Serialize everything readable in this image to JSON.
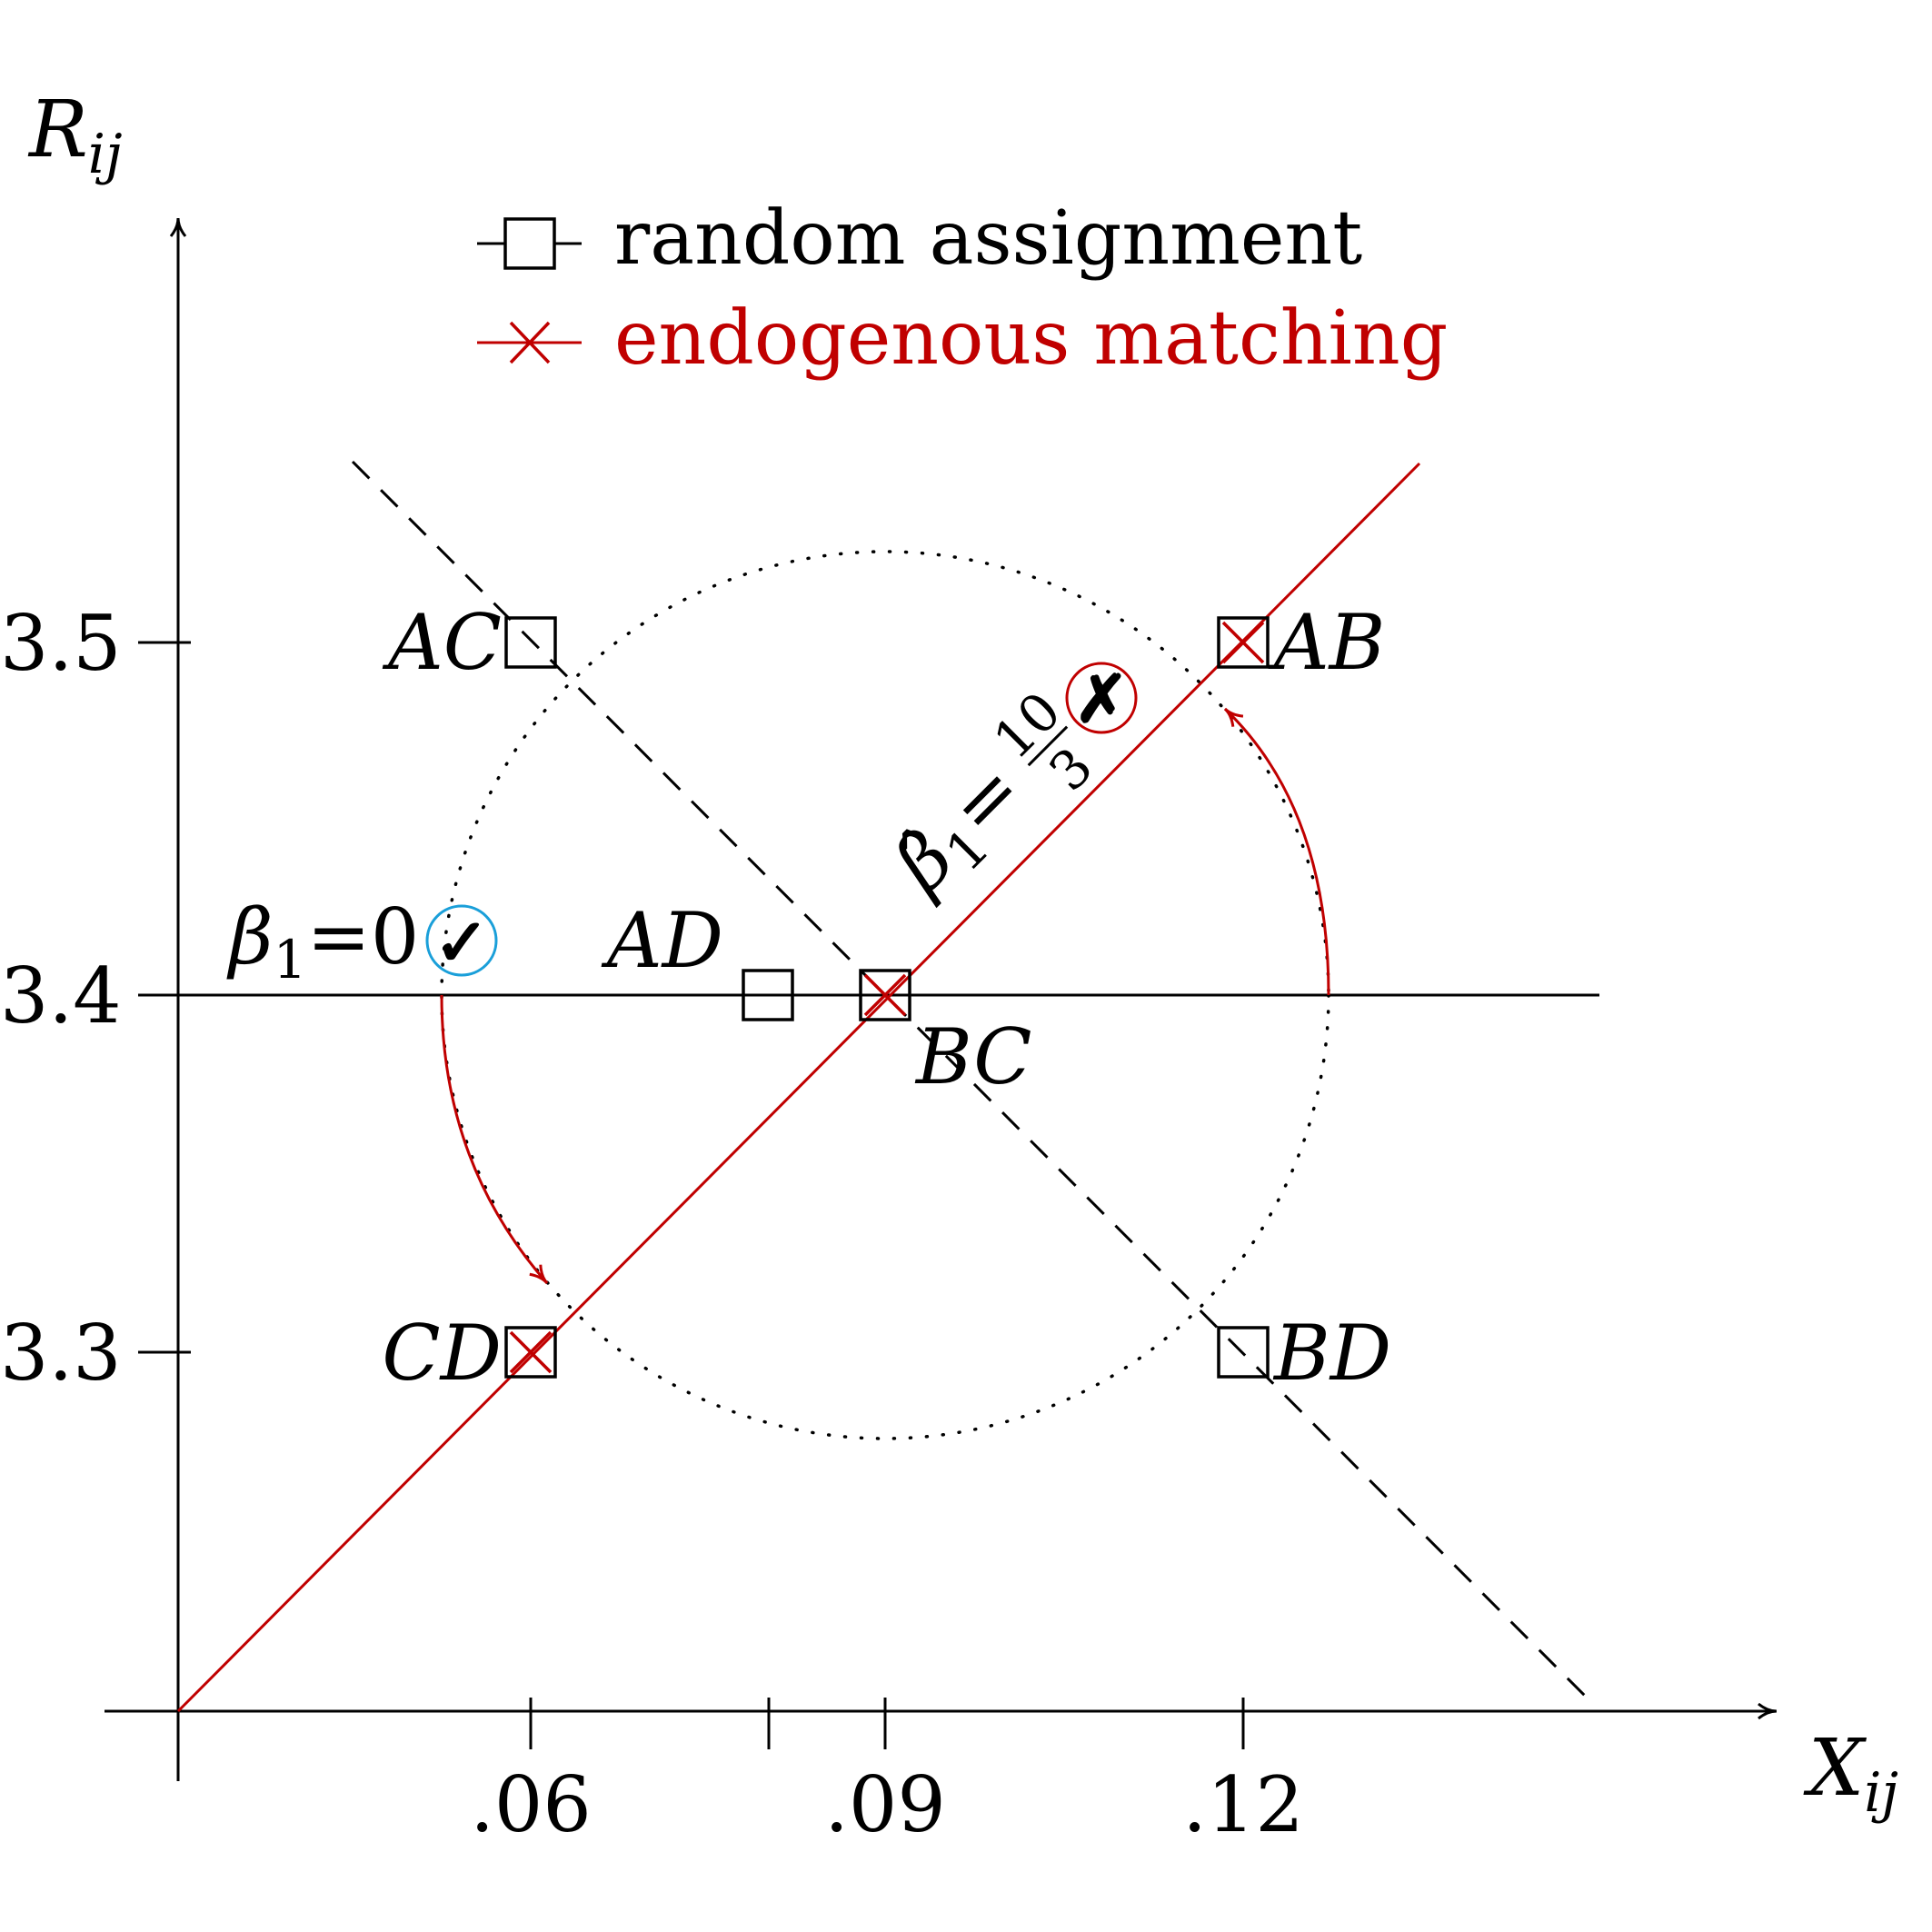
{
  "axes": {
    "x_label": "X",
    "x_label_sub": "ij",
    "y_label": "R",
    "y_label_sub": "ij",
    "x_ticks": [
      ".06",
      ".09",
      ".12"
    ],
    "y_ticks": [
      "3.5",
      "3.4",
      "3.3"
    ]
  },
  "legend": {
    "random_label": "random assignment",
    "endogenous_label": "endogenous matching"
  },
  "points": {
    "AC": "AC",
    "AB": "AB",
    "AD": "AD",
    "BC": "BC",
    "CD": "CD",
    "BD": "BD"
  },
  "annotations": {
    "beta_random": "β",
    "beta_random_sub": "1",
    "beta_random_eq": "=0",
    "check_mark": "✓",
    "beta_endog": "β̂",
    "beta_endog_sub": "1",
    "beta_endog_eq": "=",
    "frac_num": "10",
    "frac_den": "3",
    "x_mark": "✗"
  },
  "colors": {
    "endogenous": "#c00000",
    "check_circle": "#1a9fd9",
    "random": "#000000"
  },
  "chart_data": {
    "type": "scatter",
    "x_ticks": [
      0.06,
      0.09,
      0.12
    ],
    "y_ticks": [
      3.3,
      3.4,
      3.5
    ],
    "series": [
      {
        "name": "random assignment",
        "points": [
          {
            "label": "AC",
            "x": 0.06,
            "y": 3.5
          },
          {
            "label": "AB",
            "x": 0.12,
            "y": 3.5
          },
          {
            "label": "AD",
            "x": 0.08,
            "y": 3.4
          },
          {
            "label": "BC",
            "x": 0.09,
            "y": 3.4
          },
          {
            "label": "CD",
            "x": 0.06,
            "y": 3.3
          },
          {
            "label": "BD",
            "x": 0.12,
            "y": 3.3
          }
        ]
      },
      {
        "name": "endogenous matching",
        "points": [
          {
            "label": "AB",
            "x": 0.12,
            "y": 3.5
          },
          {
            "label": "BC",
            "x": 0.09,
            "y": 3.4
          },
          {
            "label": "CD",
            "x": 0.06,
            "y": 3.3
          }
        ]
      }
    ]
  }
}
